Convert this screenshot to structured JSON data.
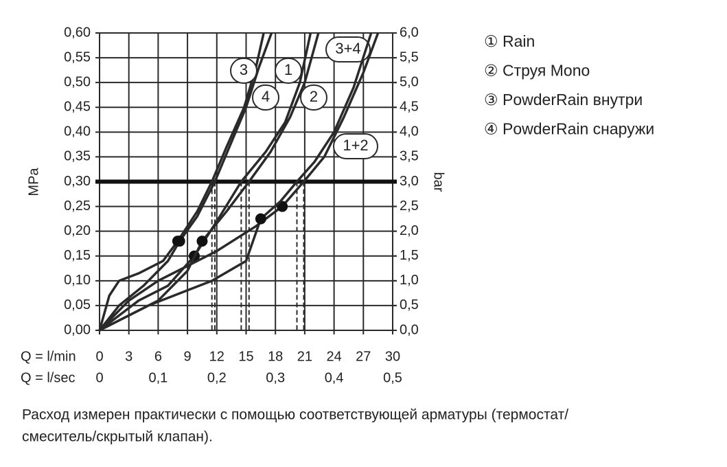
{
  "chart_data": {
    "type": "line",
    "ylabel": "MPa",
    "y2label": "bar",
    "xlabel": "Q = l/min",
    "x2label": "Q = l/sec",
    "xlim": [
      0,
      30
    ],
    "xticks": [
      0,
      3,
      6,
      9,
      12,
      15,
      18,
      21,
      24,
      27,
      30
    ],
    "x2lim": [
      0,
      0.5
    ],
    "x2ticks": [
      0,
      {
        "value": 0.1,
        "label": "0,1"
      },
      {
        "value": 0.2,
        "label": "0,2"
      },
      {
        "value": 0.3,
        "label": "0,3"
      },
      {
        "value": 0.4,
        "label": "0,4"
      },
      {
        "value": 0.5,
        "label": "0,5"
      }
    ],
    "ylim": [
      0,
      0.6
    ],
    "yticks": [
      {
        "value": 0,
        "label": "0,00"
      },
      {
        "value": 0.05,
        "label": "0,05"
      },
      {
        "value": 0.1,
        "label": "0,10"
      },
      {
        "value": 0.15,
        "label": "0,15"
      },
      {
        "value": 0.2,
        "label": "0,20"
      },
      {
        "value": 0.25,
        "label": "0,25"
      },
      {
        "value": 0.3,
        "label": "0,30"
      },
      {
        "value": 0.35,
        "label": "0,35"
      },
      {
        "value": 0.4,
        "label": "0,40"
      },
      {
        "value": 0.45,
        "label": "0,45"
      },
      {
        "value": 0.5,
        "label": "0,50"
      },
      {
        "value": 0.55,
        "label": "0,55"
      },
      {
        "value": 0.6,
        "label": "0,60"
      }
    ],
    "y2lim": [
      0,
      6
    ],
    "y2ticks": [
      {
        "value": 0,
        "label": "0,0"
      },
      {
        "value": 0.5,
        "label": "0,5"
      },
      {
        "value": 1,
        "label": "1,0"
      },
      {
        "value": 1.5,
        "label": "1,5"
      },
      {
        "value": 2,
        "label": "2,0"
      },
      {
        "value": 2.5,
        "label": "2,5"
      },
      {
        "value": 3,
        "label": "3,0"
      },
      {
        "value": 3.5,
        "label": "3,5"
      },
      {
        "value": 4,
        "label": "4,0"
      },
      {
        "value": 4.5,
        "label": "4,5"
      },
      {
        "value": 5,
        "label": "5,0"
      },
      {
        "value": 5.5,
        "label": "5,5"
      },
      {
        "value": 6,
        "label": "6,0"
      }
    ],
    "grid": true,
    "ref_line": 0.3,
    "color": "#2a2a2a",
    "series": [
      {
        "name": "3",
        "x": [
          0,
          1,
          2,
          4,
          6.5,
          8,
          10,
          11.5,
          13,
          14.8,
          16,
          16.8
        ],
        "values": [
          0,
          0.07,
          0.1,
          0.115,
          0.14,
          0.18,
          0.24,
          0.3,
          0.37,
          0.45,
          0.53,
          0.6
        ],
        "dot_x": 8,
        "dot_y": 0.18,
        "dashed_x": 11.5
      },
      {
        "name": "1",
        "x": [
          0,
          4,
          7,
          9.7,
          12,
          14.5,
          17,
          19,
          20.5,
          21.6
        ],
        "values": [
          0,
          0.06,
          0.09,
          0.15,
          0.22,
          0.3,
          0.36,
          0.42,
          0.5,
          0.6
        ],
        "dot_x": 9.7,
        "dot_y": 0.15,
        "dashed_x": 14.5
      },
      {
        "name": "4",
        "x": [
          0,
          2,
          4.5,
          7,
          8.2,
          10,
          11.8,
          13.5,
          15,
          16.3,
          17.6
        ],
        "values": [
          0,
          0.05,
          0.09,
          0.14,
          0.18,
          0.23,
          0.3,
          0.38,
          0.45,
          0.53,
          0.6
        ],
        "dot_x": 8.2,
        "dot_y": 0.18,
        "dashed_x": 11.8
      },
      {
        "name": "2",
        "x": [
          0,
          3,
          6,
          9,
          10.5,
          13,
          15.3,
          17.5,
          19.5,
          21,
          22.4
        ],
        "values": [
          0,
          0.03,
          0.06,
          0.12,
          0.18,
          0.24,
          0.3,
          0.36,
          0.43,
          0.5,
          0.6
        ],
        "dot_x": 10.5,
        "dot_y": 0.18,
        "dashed_x": 15.3
      },
      {
        "name": "3+4",
        "x": [
          0,
          3,
          6,
          9,
          12,
          16,
          18.7,
          20.9,
          23,
          25,
          27,
          28.5
        ],
        "values": [
          0,
          0.06,
          0.1,
          0.13,
          0.16,
          0.21,
          0.25,
          0.3,
          0.35,
          0.43,
          0.52,
          0.6
        ],
        "dot_x": 18.7,
        "dot_y": 0.25,
        "dashed_x": 20.9
      },
      {
        "name": "1+2",
        "x": [
          0,
          5,
          11.5,
          15,
          16.5,
          18.5,
          20.2,
          22,
          24,
          26,
          27.8
        ],
        "values": [
          0,
          0.05,
          0.1,
          0.14,
          0.225,
          0.26,
          0.3,
          0.34,
          0.4,
          0.49,
          0.6
        ],
        "dot_x": 16.5,
        "dot_y": 0.225,
        "dashed_x": 20.2
      }
    ],
    "legend": [
      "① Rain",
      "② Струя Mono",
      "③ PowderRain внутри",
      "④ PowderRain снаружи"
    ],
    "note": [
      "Расход измерен практически с помощью соответствующей арматуры (термостат/",
      "смеситель/скрытый клапан)."
    ]
  }
}
